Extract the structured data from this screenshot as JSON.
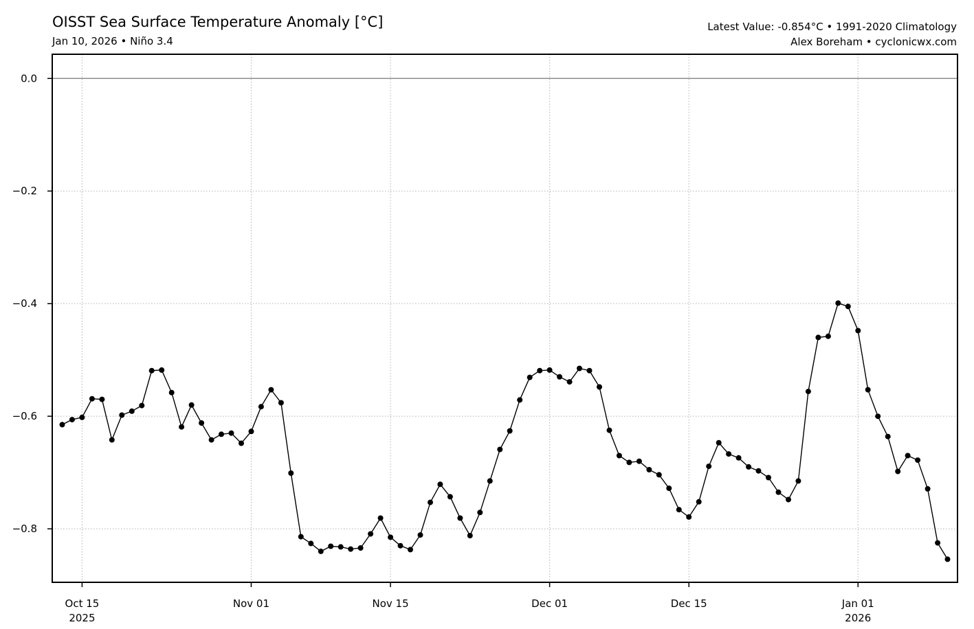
{
  "header": {
    "title": "OISST Sea Surface Temperature Anomaly [°C]",
    "subtitle": "Jan 10, 2026 • Niño 3.4",
    "right_line1": "Latest Value: -0.854°C • 1991-2020 Climatology",
    "right_line2": "Alex Boreham • cyclonicwx.com"
  },
  "chart_data": {
    "type": "line",
    "title": "OISST Sea Surface Temperature Anomaly [°C]",
    "xlabel": "",
    "ylabel": "",
    "x_start": "2025-10-13",
    "x_end": "2026-01-10",
    "xlim": [
      "2025-10-12",
      "2026-01-11"
    ],
    "ylim": [
      -0.895,
      0.043
    ],
    "grid": true,
    "grid_style": "dotted",
    "reference_line": 0.0,
    "line_color": "#000000",
    "marker": "circle",
    "y_ticks": [
      {
        "value": 0.0,
        "label": "0.0"
      },
      {
        "value": -0.2,
        "label": "−0.2"
      },
      {
        "value": -0.4,
        "label": "−0.4"
      },
      {
        "value": -0.6,
        "label": "−0.6"
      },
      {
        "value": -0.8,
        "label": "−0.8"
      }
    ],
    "x_ticks": [
      {
        "date": "2025-10-15",
        "label": "Oct 15",
        "sublabel": "2025"
      },
      {
        "date": "2025-11-01",
        "label": "Nov 01",
        "sublabel": ""
      },
      {
        "date": "2025-11-15",
        "label": "Nov 15",
        "sublabel": ""
      },
      {
        "date": "2025-12-01",
        "label": "Dec 01",
        "sublabel": ""
      },
      {
        "date": "2025-12-15",
        "label": "Dec 15",
        "sublabel": ""
      },
      {
        "date": "2026-01-01",
        "label": "Jan 01",
        "sublabel": "2026"
      }
    ],
    "values": [
      -0.615,
      -0.606,
      -0.602,
      -0.569,
      -0.57,
      -0.642,
      -0.598,
      -0.591,
      -0.581,
      -0.519,
      -0.518,
      -0.558,
      -0.619,
      -0.58,
      -0.612,
      -0.642,
      -0.632,
      -0.63,
      -0.648,
      -0.627,
      -0.583,
      -0.553,
      -0.576,
      -0.701,
      -0.814,
      -0.826,
      -0.84,
      -0.831,
      -0.832,
      -0.836,
      -0.834,
      -0.809,
      -0.781,
      -0.815,
      -0.83,
      -0.837,
      -0.811,
      -0.753,
      -0.721,
      -0.743,
      -0.781,
      -0.812,
      -0.771,
      -0.715,
      -0.659,
      -0.626,
      -0.571,
      -0.531,
      -0.519,
      -0.518,
      -0.53,
      -0.539,
      -0.515,
      -0.519,
      -0.548,
      -0.625,
      -0.67,
      -0.682,
      -0.68,
      -0.695,
      -0.704,
      -0.728,
      -0.766,
      -0.779,
      -0.752,
      -0.689,
      -0.647,
      -0.667,
      -0.674,
      -0.69,
      -0.697,
      -0.709,
      -0.735,
      -0.748,
      -0.715,
      -0.556,
      -0.46,
      -0.458,
      -0.399,
      -0.405,
      -0.448,
      -0.553,
      -0.6,
      -0.636,
      -0.698,
      -0.67,
      -0.678,
      -0.729,
      -0.825,
      -0.854
    ]
  }
}
